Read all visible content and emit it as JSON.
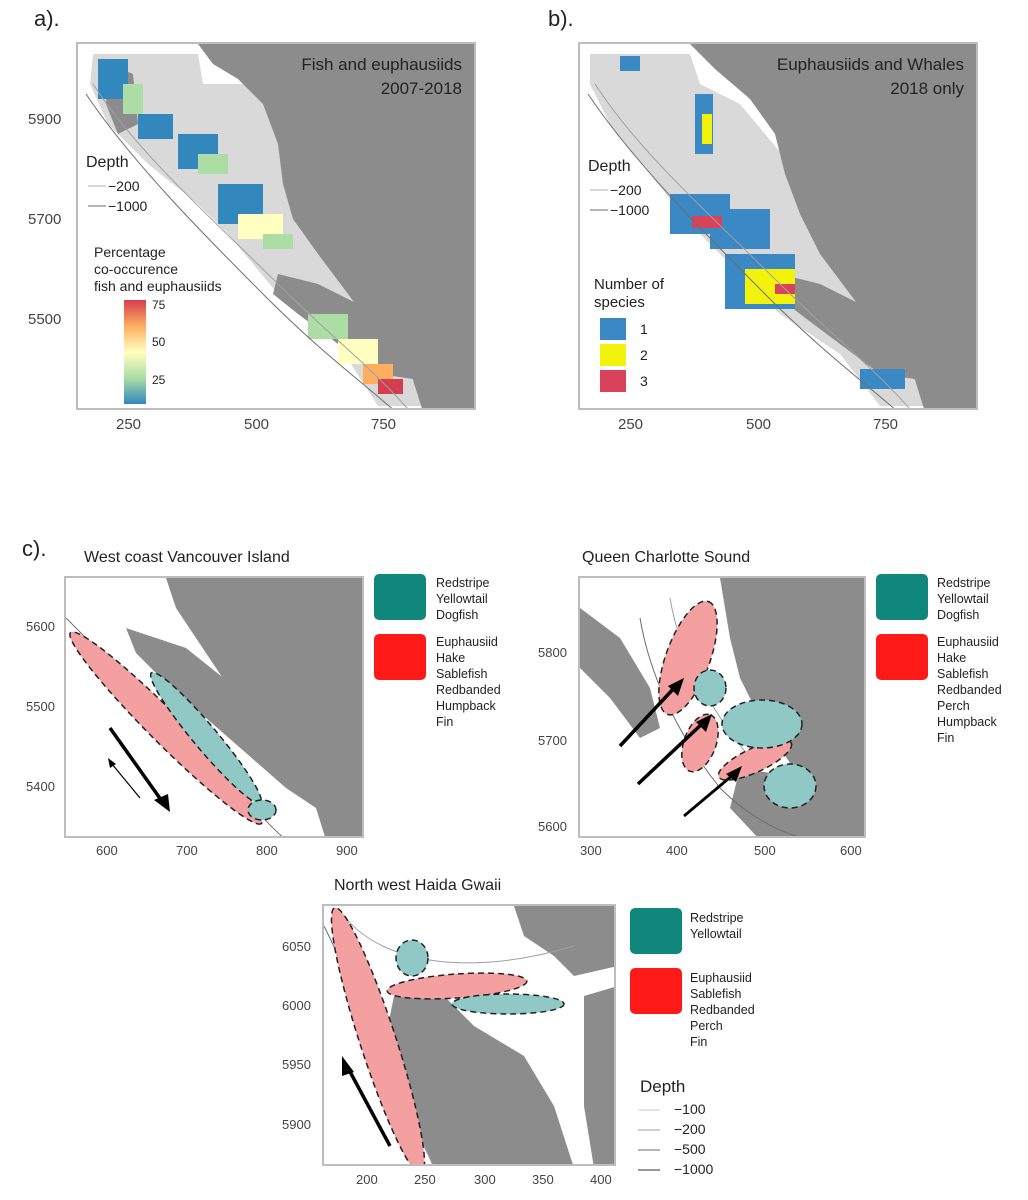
{
  "panels": {
    "a": {
      "letter": "a).",
      "title_line1": "Fish and euphausiids",
      "title_line2": "2007-2018",
      "y_ticks": [
        "5900",
        "5700",
        "5500"
      ],
      "x_ticks": [
        "250",
        "500",
        "750"
      ],
      "depth_legend": {
        "title": "Depth",
        "items": [
          "−200",
          "−1000"
        ]
      },
      "colorbar": {
        "title": [
          "Percentage",
          "co-occurence",
          "fish and euphausiids"
        ],
        "ticks": [
          "75",
          "50",
          "25"
        ],
        "colors": [
          "#d53e4f",
          "#fdae61",
          "#ffffbf",
          "#abdda4",
          "#3288bd"
        ]
      }
    },
    "b": {
      "letter": "b).",
      "title_line1": "Euphausiids and Whales",
      "title_line2": "2018 only",
      "y_ticks": [
        "5900",
        "5700",
        "5500"
      ],
      "x_ticks": [
        "250",
        "500",
        "750"
      ],
      "depth_legend": {
        "title": "Depth",
        "items": [
          "−200",
          "−1000"
        ]
      },
      "species_legend": {
        "title": [
          "Number of",
          "species"
        ],
        "items": [
          {
            "label": "1",
            "color": "#3a88c4"
          },
          {
            "label": "2",
            "color": "#f2f20d"
          },
          {
            "label": "3",
            "color": "#d9435a"
          }
        ]
      }
    },
    "c": {
      "letter": "c).",
      "west_coast": {
        "title": "West coast Vancouver Island",
        "y_ticks": [
          "5600",
          "5500",
          "5400"
        ],
        "x_ticks": [
          "600",
          "700",
          "800",
          "900"
        ],
        "teal_legend": [
          "Redstripe",
          "Yellowtail",
          "Dogfish"
        ],
        "red_legend": [
          "Euphausiid",
          "Hake",
          "Sablefish",
          "Redbanded",
          "Humpback",
          "Fin"
        ]
      },
      "queen_charlotte": {
        "title": "Queen Charlotte Sound",
        "y_ticks": [
          "5800",
          "5700",
          "5600"
        ],
        "x_ticks": [
          "300",
          "400",
          "500",
          "600"
        ],
        "teal_legend": [
          "Redstripe",
          "Yellowtail",
          "Dogfish"
        ],
        "red_legend": [
          "Euphausiid",
          "Hake",
          "Sablefish",
          "Redbanded",
          "Perch",
          "Humpback",
          "Fin"
        ]
      },
      "haida_gwaii": {
        "title": "North west Haida Gwaii",
        "y_ticks": [
          "6050",
          "6000",
          "5950",
          "5900"
        ],
        "x_ticks": [
          "200",
          "250",
          "300",
          "350",
          "400"
        ],
        "teal_legend": [
          "Redstripe",
          "Yellowtail"
        ],
        "red_legend": [
          "Euphausiid",
          "Sablefish",
          "Redbanded",
          "Perch",
          "Fin"
        ],
        "depth_legend": {
          "title": "Depth",
          "items": [
            "−100",
            "−200",
            "−500",
            "−1000"
          ]
        }
      }
    }
  },
  "colors": {
    "land": "#8c8c8c",
    "survey_grey": "#d9d9d9",
    "teal": "#0f877d",
    "teal_light": "#8fc8c4",
    "red": "#ff1a1a",
    "red_light": "#f4a0a0",
    "frame": "#bdbdbd"
  }
}
